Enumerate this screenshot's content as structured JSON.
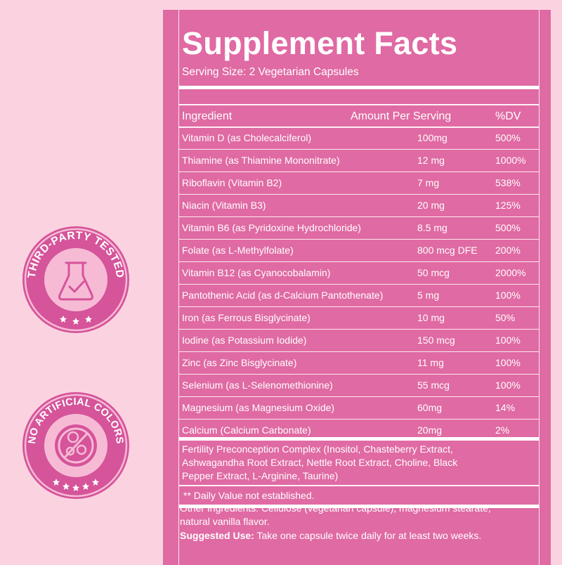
{
  "facts": {
    "title": "Supplement Facts",
    "serving_size": "Serving Size: 2 Vegetarian Capsules",
    "headers": {
      "ingredient": "Ingredient",
      "amount": "Amount Per Serving",
      "dv": "%DV"
    },
    "rows": [
      {
        "ingredient": "Vitamin D (as Cholecalciferol)",
        "amount": "100mg",
        "dv": "500%"
      },
      {
        "ingredient": "Thiamine (as Thiamine Mononitrate)",
        "amount": "12 mg",
        "dv": "1000%"
      },
      {
        "ingredient": "Riboflavin (Vitamin B2)",
        "amount": "7 mg",
        "dv": "538%"
      },
      {
        "ingredient": "Niacin (Vitamin B3)",
        "amount": "20 mg",
        "dv": "125%"
      },
      {
        "ingredient": "Vitamin B6 (as Pyridoxine Hydrochloride)",
        "amount": "8.5 mg",
        "dv": "500%"
      },
      {
        "ingredient": "Folate (as L-Methylfolate)",
        "amount": "800 mcg DFE",
        "dv": "200%"
      },
      {
        "ingredient": "Vitamin B12 (as Cyanocobalamin)",
        "amount": "50 mcg",
        "dv": "2000%"
      },
      {
        "ingredient": "Pantothenic Acid (as d-Calcium Pantothenate)",
        "amount": "5 mg",
        "dv": "100%"
      },
      {
        "ingredient": "Iron (as Ferrous Bisglycinate)",
        "amount": "10 mg",
        "dv": "50%"
      },
      {
        "ingredient": "Iodine (as Potassium Iodide)",
        "amount": "150 mcg",
        "dv": "100%"
      },
      {
        "ingredient": "Zinc (as Zinc Bisglycinate)",
        "amount": "11 mg",
        "dv": "100%"
      },
      {
        "ingredient": "Selenium (as L-Selenomethionine)",
        "amount": "55 mcg",
        "dv": "100%"
      },
      {
        "ingredient": "Magnesium (as Magnesium Oxide)",
        "amount": "60mg",
        "dv": "14%"
      },
      {
        "ingredient": "Calcium (Calcium Carbonate)",
        "amount": "20mg",
        "dv": "2%"
      }
    ],
    "blend_line1": "Fertility Preconception Complex (Inositol, Chasteberry Extract,",
    "blend_line2": "Ashwagandha Root Extract, Nettle Root Extract, Choline, Black",
    "blend_line3": "Pepper Extract, L-Arginine, Taurine)",
    "footnote": "** Daily Value not established.",
    "other_line1": "Other Ingredients: Cellulose (vegetarian capsule), magnesium stearate,",
    "other_line2": "natural vanilla flavor.",
    "suggested_label": "Suggested Use:",
    "suggested_text": " Take one capsule twice daily for at least two weeks."
  },
  "badges": {
    "tested": {
      "text": "THIRD-PARTY TESTED",
      "icon": "flask-check-icon"
    },
    "colors": {
      "text": "NO ARTIFICIAL COLORS",
      "icon": "no-dye-icon"
    }
  },
  "colors": {
    "background": "#fbd3e0",
    "panel": "#e06aa3",
    "badge_dark": "#d5549a",
    "badge_light": "#f7bad5"
  }
}
